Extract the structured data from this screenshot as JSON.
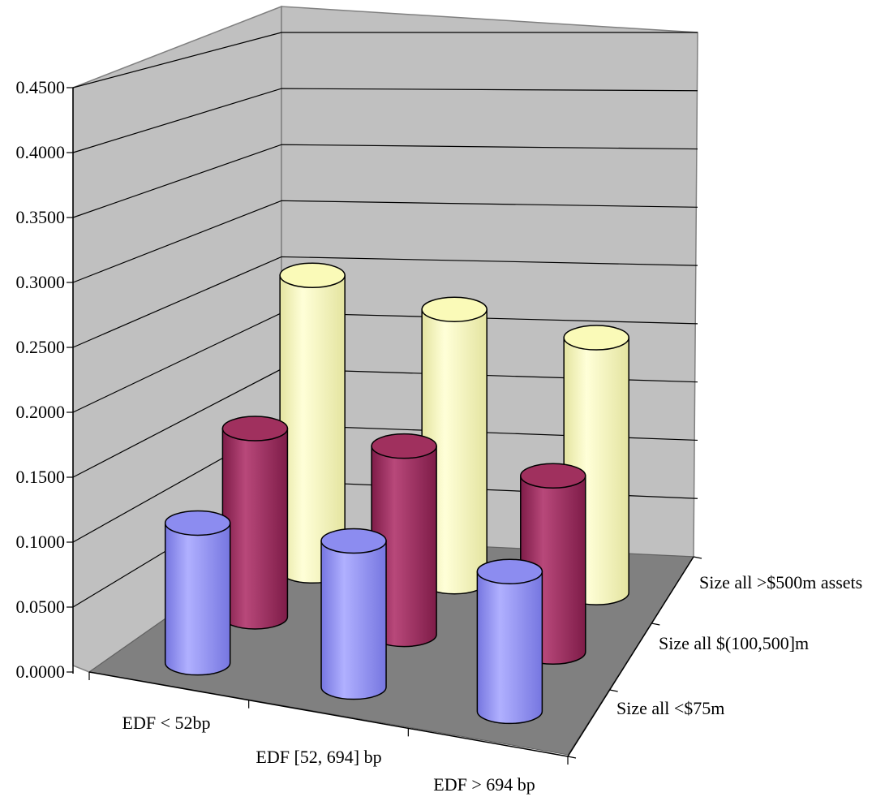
{
  "chart_data": {
    "type": "bar",
    "subtype": "3d-cylinder",
    "categories": [
      "EDF < 52bp",
      "EDF [52, 694] bp",
      "EDF > 694 bp"
    ],
    "series": [
      {
        "name": "Size all <$75m",
        "values": [
          0.11,
          0.115,
          0.11
        ]
      },
      {
        "name": "Size all $(100,500]m",
        "values": [
          0.155,
          0.155,
          0.145
        ]
      },
      {
        "name": "Size all >$500m assets",
        "values": [
          0.255,
          0.235,
          0.22
        ]
      }
    ],
    "y_ticks": [
      "0.0000",
      "0.0500",
      "0.1000",
      "0.1500",
      "0.2000",
      "0.2500",
      "0.3000",
      "0.3500",
      "0.4000",
      "0.4500"
    ],
    "ylim": [
      0,
      0.45
    ],
    "grid": true,
    "colors": {
      "series": [
        "#8c8cf0",
        "#a0305e",
        "#fafab8"
      ],
      "floor": "#808080",
      "wall": "#c0c0c0"
    }
  }
}
